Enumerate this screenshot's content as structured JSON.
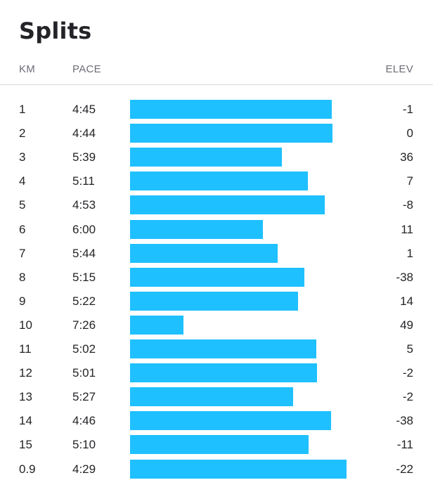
{
  "title": "Splits",
  "header": {
    "km": "KM",
    "pace": "PACE",
    "elev": "ELEV"
  },
  "colors": {
    "bar": "#1fc0ff",
    "text": "#242428",
    "header_text": "#6d6d78",
    "divider": "#d6d6d8"
  },
  "chart_data": {
    "type": "bar",
    "orientation": "horizontal",
    "title": "Splits",
    "categories": [
      "1",
      "2",
      "3",
      "4",
      "5",
      "6",
      "7",
      "8",
      "9",
      "10",
      "11",
      "12",
      "13",
      "14",
      "15",
      "0.9"
    ],
    "pace": [
      "4:45",
      "4:44",
      "5:39",
      "5:11",
      "4:53",
      "6:00",
      "5:44",
      "5:15",
      "5:22",
      "7:26",
      "5:02",
      "5:01",
      "5:27",
      "4:46",
      "5:10",
      "4:29"
    ],
    "elev": [
      "-1",
      "0",
      "36",
      "7",
      "-8",
      "11",
      "1",
      "-38",
      "14",
      "49",
      "5",
      "-2",
      "-2",
      "-38",
      "-11",
      "-22"
    ],
    "bar_length_encoding": "faster pace = longer bar"
  },
  "rows": [
    {
      "km": "1",
      "pace": "4:45",
      "elev": "-1"
    },
    {
      "km": "2",
      "pace": "4:44",
      "elev": "0"
    },
    {
      "km": "3",
      "pace": "5:39",
      "elev": "36"
    },
    {
      "km": "4",
      "pace": "5:11",
      "elev": "7"
    },
    {
      "km": "5",
      "pace": "4:53",
      "elev": "-8"
    },
    {
      "km": "6",
      "pace": "6:00",
      "elev": "11"
    },
    {
      "km": "7",
      "pace": "5:44",
      "elev": "1"
    },
    {
      "km": "8",
      "pace": "5:15",
      "elev": "-38"
    },
    {
      "km": "9",
      "pace": "5:22",
      "elev": "14"
    },
    {
      "km": "10",
      "pace": "7:26",
      "elev": "49"
    },
    {
      "km": "11",
      "pace": "5:02",
      "elev": "5"
    },
    {
      "km": "12",
      "pace": "5:01",
      "elev": "-2"
    },
    {
      "km": "13",
      "pace": "5:27",
      "elev": "-2"
    },
    {
      "km": "14",
      "pace": "4:46",
      "elev": "-38"
    },
    {
      "km": "15",
      "pace": "5:10",
      "elev": "-11"
    },
    {
      "km": "0.9",
      "pace": "4:29",
      "elev": "-22"
    }
  ]
}
